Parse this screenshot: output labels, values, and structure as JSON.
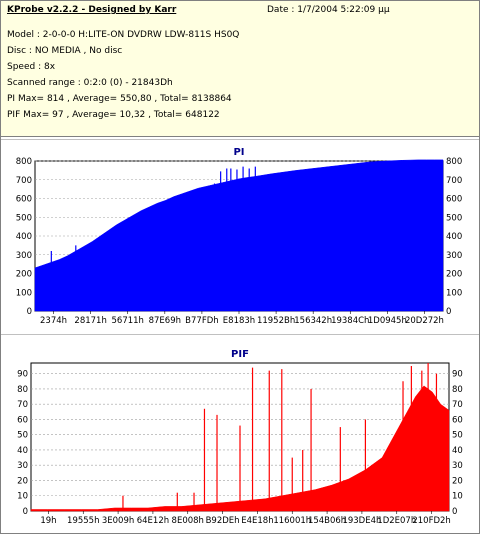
{
  "info": {
    "title": "KProbe v2.2.2 - Designed by Karr",
    "date": "Date : 1/7/2004 5:22:09 μμ",
    "model": "Model : 2-0-0-0 H:LITE-ON DVDRW LDW-811S   HS0Q",
    "disc": "Disc : NO MEDIA , No disc",
    "speed": "Speed : 8x",
    "scanned_range": "Scanned range : 0:2:0 (0) - 21843Dh",
    "pi_summary": "PI Max= 814 , Average= 550,80 , Total= 8138864",
    "pif_summary": "PIF Max= 97 , Average= 10,32 , Total= 648122"
  },
  "colors": {
    "pi_fill": "#0000ff",
    "pif_fill": "#ff0000",
    "plot_bg": "#ffffff",
    "grid": "#a0a0a0",
    "info_bg": "#ffffe1"
  },
  "chart_data": [
    {
      "type": "area",
      "title": "PI",
      "x_tick_labels": [
        "2374h",
        "28171h",
        "56711h",
        "87E69h",
        "B77FDh",
        "E8183h",
        "11952Bh",
        "156342h",
        "19384Ch",
        "1D0945h",
        "20D272h"
      ],
      "y_ticks": [
        0,
        100,
        200,
        300,
        400,
        500,
        600,
        700,
        800
      ],
      "ylim": [
        0,
        800
      ],
      "grid": true,
      "x": [
        0,
        0.02,
        0.04,
        0.06,
        0.08,
        0.1,
        0.12,
        0.14,
        0.16,
        0.18,
        0.2,
        0.22,
        0.24,
        0.26,
        0.28,
        0.3,
        0.32,
        0.34,
        0.36,
        0.38,
        0.4,
        0.42,
        0.44,
        0.46,
        0.48,
        0.5,
        0.52,
        0.54,
        0.56,
        0.58,
        0.6,
        0.62,
        0.64,
        0.66,
        0.68,
        0.7,
        0.72,
        0.74,
        0.76,
        0.78,
        0.8,
        0.82,
        0.84,
        0.86,
        0.88,
        0.9,
        0.92,
        0.94,
        0.96,
        0.98,
        1.0
      ],
      "values": [
        230,
        245,
        260,
        275,
        295,
        320,
        345,
        370,
        400,
        430,
        460,
        485,
        510,
        535,
        555,
        575,
        590,
        610,
        625,
        640,
        655,
        665,
        675,
        685,
        695,
        705,
        712,
        718,
        725,
        732,
        738,
        744,
        750,
        755,
        760,
        765,
        770,
        775,
        780,
        785,
        790,
        795,
        798,
        800,
        802,
        804,
        805,
        806,
        806,
        806,
        806
      ],
      "spikes": [
        {
          "x": 0.04,
          "value": 320
        },
        {
          "x": 0.1,
          "value": 350
        },
        {
          "x": 0.4,
          "value": 640
        },
        {
          "x": 0.42,
          "value": 650
        },
        {
          "x": 0.44,
          "value": 680
        },
        {
          "x": 0.455,
          "value": 745
        },
        {
          "x": 0.47,
          "value": 760
        },
        {
          "x": 0.48,
          "value": 760
        },
        {
          "x": 0.495,
          "value": 755
        },
        {
          "x": 0.51,
          "value": 770
        },
        {
          "x": 0.525,
          "value": 760
        },
        {
          "x": 0.54,
          "value": 770
        }
      ]
    },
    {
      "type": "area",
      "title": "PIF",
      "x_tick_labels": [
        "19h",
        "19555h",
        "3E009h",
        "64E12h",
        "8E008h",
        "B92DEh",
        "E4E18h",
        "116001h",
        "154B06h",
        "193DE4h",
        "1D2E07h",
        "210FD2h"
      ],
      "y_ticks": [
        0,
        10,
        20,
        30,
        40,
        50,
        60,
        70,
        80,
        90
      ],
      "ylim": [
        0,
        97
      ],
      "grid": true,
      "x": [
        0,
        0.04,
        0.08,
        0.12,
        0.16,
        0.2,
        0.24,
        0.28,
        0.32,
        0.36,
        0.4,
        0.44,
        0.48,
        0.52,
        0.56,
        0.6,
        0.64,
        0.68,
        0.72,
        0.76,
        0.8,
        0.84,
        0.86,
        0.88,
        0.9,
        0.92,
        0.94,
        0.96,
        0.98,
        1.0
      ],
      "values": [
        1,
        1,
        1,
        1,
        1,
        2,
        2,
        2,
        3,
        3,
        4,
        5,
        6,
        7,
        8,
        10,
        12,
        14,
        17,
        21,
        27,
        35,
        45,
        55,
        65,
        75,
        82,
        78,
        70,
        66
      ],
      "spikes": [
        {
          "x": 0.22,
          "value": 10
        },
        {
          "x": 0.35,
          "value": 12
        },
        {
          "x": 0.39,
          "value": 12
        },
        {
          "x": 0.415,
          "value": 67
        },
        {
          "x": 0.445,
          "value": 63
        },
        {
          "x": 0.5,
          "value": 56
        },
        {
          "x": 0.53,
          "value": 94
        },
        {
          "x": 0.57,
          "value": 92
        },
        {
          "x": 0.6,
          "value": 93
        },
        {
          "x": 0.625,
          "value": 35
        },
        {
          "x": 0.65,
          "value": 40
        },
        {
          "x": 0.67,
          "value": 80
        },
        {
          "x": 0.74,
          "value": 55
        },
        {
          "x": 0.8,
          "value": 60
        },
        {
          "x": 0.89,
          "value": 85
        },
        {
          "x": 0.91,
          "value": 95
        },
        {
          "x": 0.935,
          "value": 92
        },
        {
          "x": 0.95,
          "value": 97
        },
        {
          "x": 0.97,
          "value": 90
        }
      ]
    }
  ]
}
